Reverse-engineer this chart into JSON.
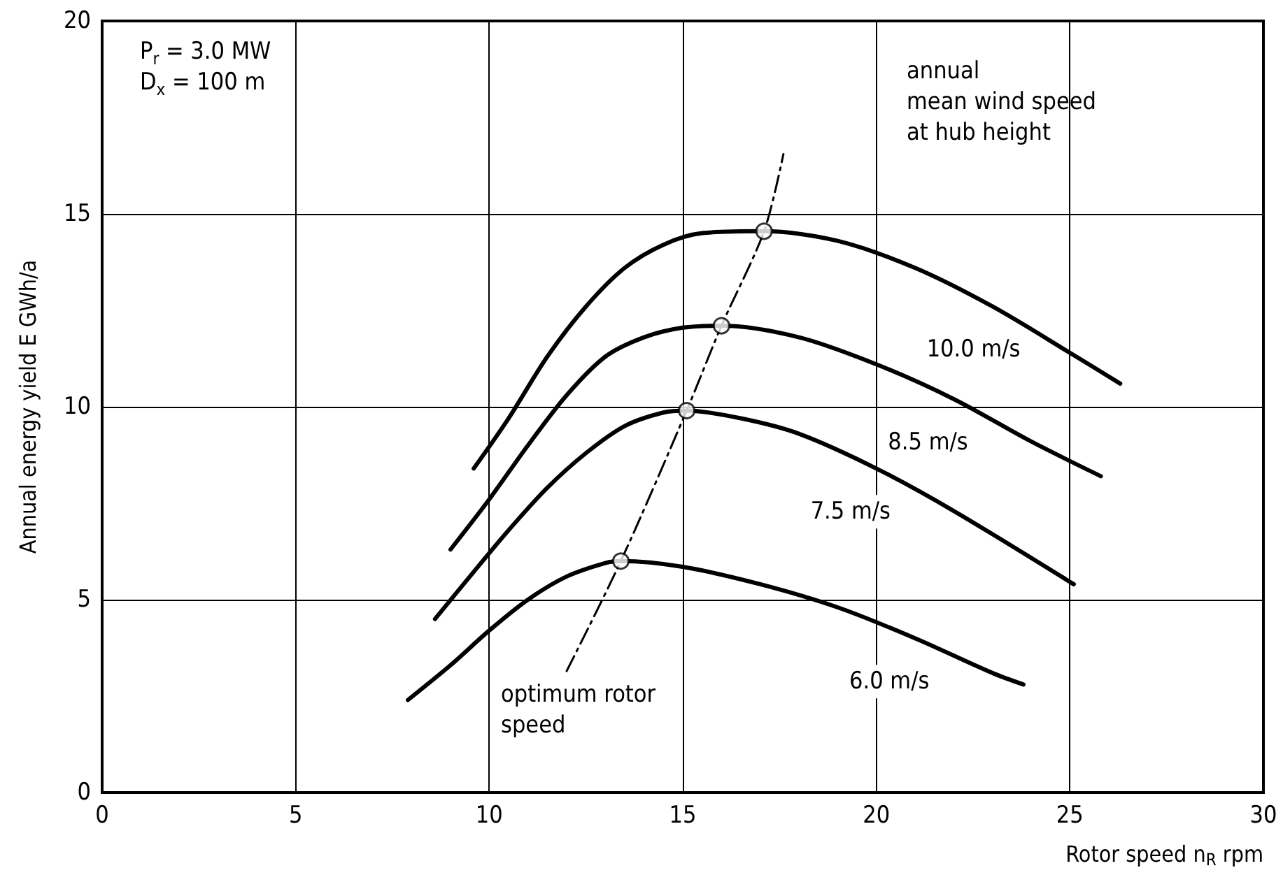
{
  "chart_data": {
    "type": "line",
    "xlabel": "Rotor speed n$_{R}$ rpm",
    "ylabel": "Annual energy yield E GWh/a",
    "annotations": [
      "P$_{r}$ = 3.0 MW",
      "D$_{x}$ = 100 m",
      "annual\nmean wind speed\nat hub height"
    ],
    "series": [
      {
        "name": "10.0 m/s",
        "color": "#000000",
        "x": [
          9.6,
          10.5,
          11.5,
          12.5,
          13.5,
          14.5,
          15.5,
          17.1,
          19,
          21,
          23,
          25,
          26.3
        ],
        "values": [
          8.4,
          9.7,
          11.3,
          12.6,
          13.6,
          14.2,
          14.5,
          14.55,
          14.3,
          13.6,
          12.6,
          11.4,
          10.6
        ]
      },
      {
        "name": "8.5 m/s",
        "color": "#000000",
        "x": [
          9.0,
          10,
          11,
          12,
          13,
          14,
          15,
          16,
          18,
          20,
          22,
          24,
          25.8
        ],
        "values": [
          6.3,
          7.6,
          9.0,
          10.3,
          11.3,
          11.8,
          12.05,
          12.1,
          11.8,
          11.1,
          10.2,
          9.1,
          8.2
        ]
      },
      {
        "name": "7.5 m/s",
        "color": "#000000",
        "x": [
          8.6,
          9.5,
          10.5,
          11.5,
          12.5,
          13.5,
          14.5,
          15.1,
          16.5,
          18,
          20,
          22,
          25.1
        ],
        "values": [
          4.5,
          5.6,
          6.8,
          7.9,
          8.8,
          9.5,
          9.85,
          9.9,
          9.7,
          9.3,
          8.4,
          7.3,
          5.4
        ]
      },
      {
        "name": "6.0 m/s",
        "color": "#000000",
        "x": [
          7.9,
          9,
          10,
          11,
          12,
          13,
          13.4,
          15,
          17,
          19,
          21,
          23,
          23.8
        ],
        "values": [
          2.4,
          3.3,
          4.2,
          5.0,
          5.6,
          5.95,
          6.0,
          5.85,
          5.4,
          4.8,
          4.0,
          3.1,
          2.8
        ]
      },
      {
        "name": "optimum rotor\nspeed",
        "color": "#000000",
        "line_style": "dashed",
        "x": [
          12.0,
          13.4,
          15.1,
          16.0,
          17.1,
          17.6
        ],
        "values": [
          3.15,
          6.0,
          9.9,
          12.1,
          14.55,
          16.55
        ]
      },
      {
        "type": "scatter",
        "marker": "circle",
        "color": "#000000",
        "x": [
          13.4,
          15.1,
          16.0,
          17.1
        ],
        "values": [
          6.0,
          9.9,
          12.1,
          14.55
        ]
      }
    ],
    "xlim": [
      0,
      30
    ],
    "xticks": [
      0,
      5,
      10,
      15,
      20,
      25,
      30
    ],
    "ylim": [
      0,
      20
    ],
    "yticks": [
      0,
      5,
      10,
      15,
      20
    ],
    "grid": true,
    "legend": false,
    "marker": "none",
    "line_style": "solid"
  }
}
